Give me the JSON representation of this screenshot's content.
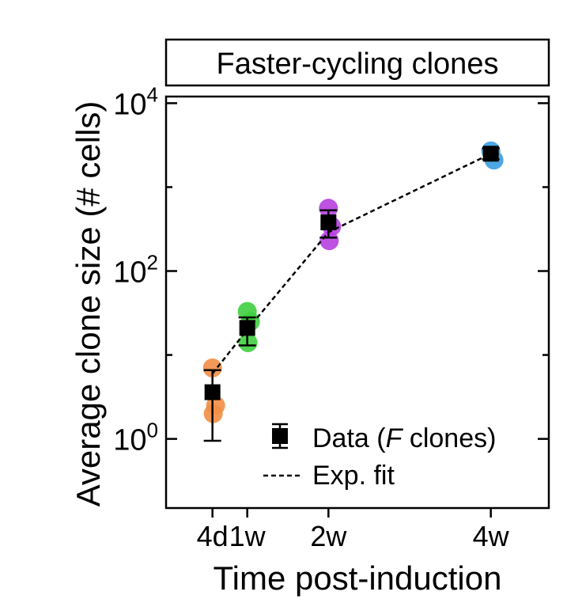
{
  "chart_data": {
    "type": "scatter",
    "title": "Faster-cycling clones",
    "xlabel": "Time post-induction",
    "ylabel": "Average clone size (# cells)",
    "yscale": "log",
    "ylim": [
      0.15,
      12000
    ],
    "xlim": [
      0,
      33
    ],
    "x_ticks": [
      {
        "value": 4,
        "label": "4d"
      },
      {
        "value": 7,
        "label": "1w"
      },
      {
        "value": 14,
        "label": "2w"
      },
      {
        "value": 28,
        "label": "4w"
      }
    ],
    "y_ticks": [
      {
        "value": 1,
        "base": "10",
        "exp": "0"
      },
      {
        "value": 100,
        "base": "10",
        "exp": "2"
      },
      {
        "value": 10000,
        "base": "10",
        "exp": "4"
      }
    ],
    "replicates": [
      {
        "x": 4,
        "color": "#f28e45",
        "values": [
          7.0,
          2.5,
          2.0
        ]
      },
      {
        "x": 7,
        "color": "#3fcf3f",
        "values": [
          33,
          25,
          14
        ]
      },
      {
        "x": 14,
        "color": "#b63fe0",
        "values": [
          560,
          340,
          230
        ]
      },
      {
        "x": 28,
        "color": "#3b9de0",
        "values": [
          2700,
          2100
        ]
      }
    ],
    "series": [
      {
        "name": "Data",
        "name_italic": "F",
        "name_suffix": " clones)",
        "name_prefix": "Data (",
        "x": [
          4,
          7,
          14,
          28
        ],
        "mean": [
          3.6,
          21,
          380,
          2500
        ],
        "err_low": [
          0.95,
          13,
          250,
          2150
        ],
        "err_high": [
          6.6,
          28,
          530,
          2900
        ],
        "color": "#000000"
      },
      {
        "name": "Exp. fit",
        "x": [
          4,
          7,
          14,
          28
        ],
        "y": [
          6.0,
          20,
          290,
          2500
        ],
        "style": "dashed",
        "color": "#000000"
      }
    ],
    "legend": {
      "position": "bottom-right"
    }
  }
}
